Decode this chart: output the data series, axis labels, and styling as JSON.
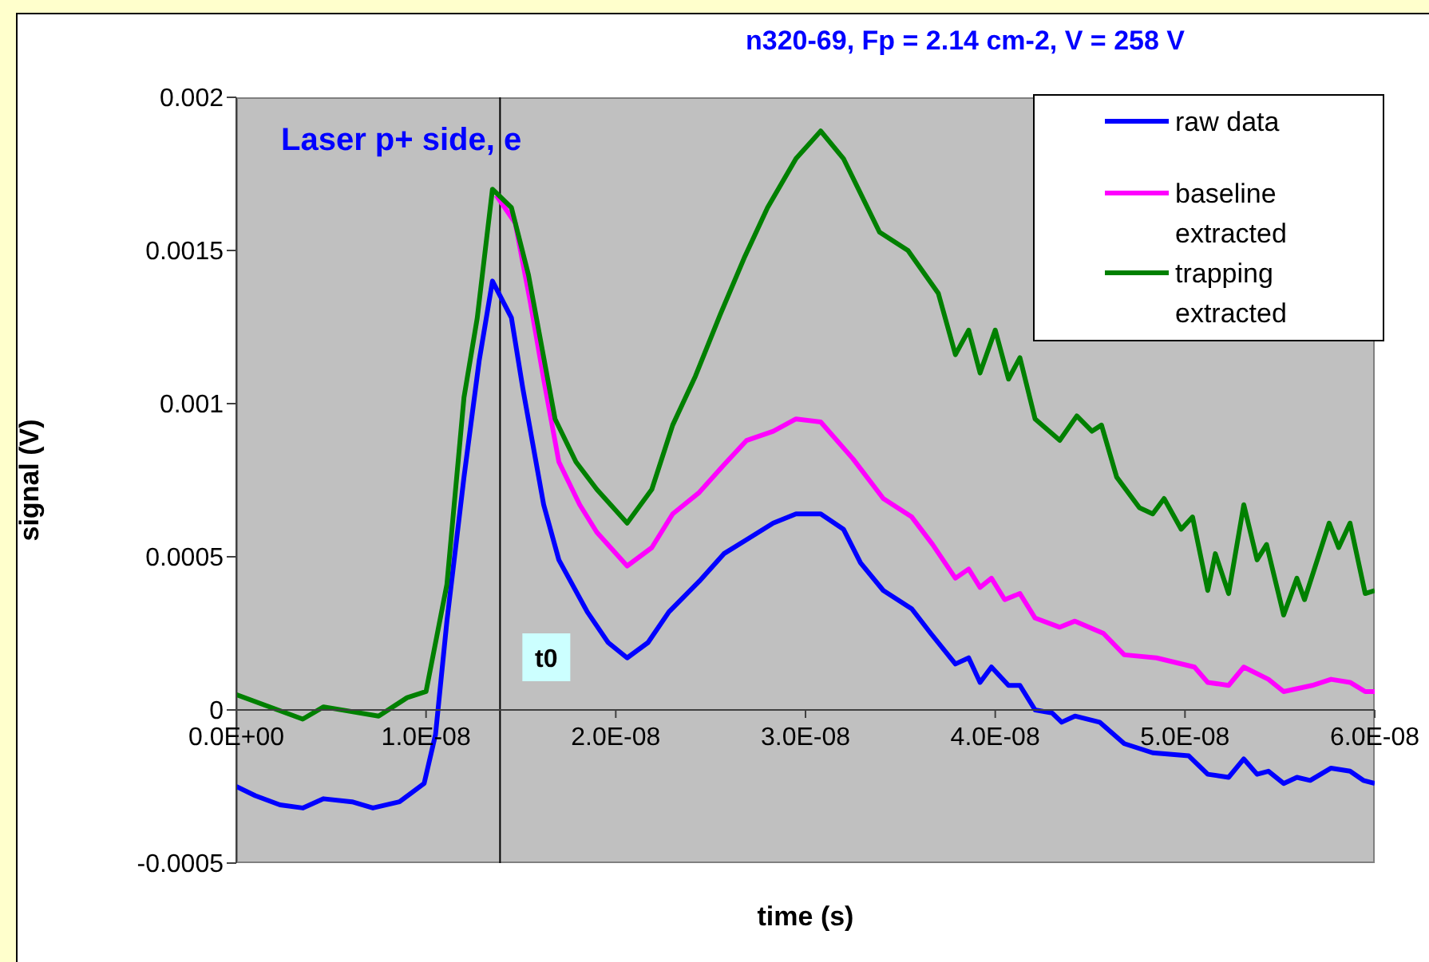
{
  "chart_data": {
    "type": "line",
    "title": "n320-69, Fp = 2.14 cm-2, V = 258 V",
    "xlabel": "time (s)",
    "ylabel": "signal (V)",
    "annotations": [
      "Laser p+ side, e"
    ],
    "xlim": [
      0,
      6e-08
    ],
    "xticks": [
      {
        "value": 0,
        "label": "0.0E+00"
      },
      {
        "value": 1e-08,
        "label": "1.0E-08"
      },
      {
        "value": 2e-08,
        "label": "2.0E-08"
      },
      {
        "value": 3e-08,
        "label": "3.0E-08"
      },
      {
        "value": 4e-08,
        "label": "4.0E-08"
      },
      {
        "value": 5e-08,
        "label": "5.0E-08"
      },
      {
        "value": 6e-08,
        "label": "6.0E-08"
      }
    ],
    "ylim": [
      -0.0005,
      0.002
    ],
    "yticks": [
      -0.0005,
      0,
      0.0005,
      0.001,
      0.0015,
      0.002
    ],
    "legend": "top right",
    "marker": "none",
    "line_style": "solid",
    "ref_lines": [
      {
        "axis": "x",
        "value": 1.39e-08,
        "label": "t0",
        "color": "#000000"
      }
    ],
    "series": [
      {
        "name": "raw data",
        "color": "#0000ff",
        "x": [
          0,
          1e-09,
          2.3e-09,
          3.5e-09,
          4.6e-09,
          6.1e-09,
          7.2e-09,
          8.6e-09,
          9.9e-09,
          1.05e-08,
          1.11e-08,
          1.2e-08,
          1.28e-08,
          1.35e-08,
          1.45e-08,
          1.51e-08,
          1.62e-08,
          1.7e-08,
          1.85e-08,
          1.96e-08,
          2.06e-08,
          2.17e-08,
          2.28e-08,
          2.44e-08,
          2.57e-08,
          2.7e-08,
          2.83e-08,
          2.95e-08,
          3.08e-08,
          3.2e-08,
          3.29e-08,
          3.41e-08,
          3.56e-08,
          3.66e-08,
          3.79e-08,
          3.86e-08,
          3.92e-08,
          3.98e-08,
          4.07e-08,
          4.13e-08,
          4.21e-08,
          4.3e-08,
          4.35e-08,
          4.42e-08,
          4.55e-08,
          4.68e-08,
          4.83e-08,
          5.02e-08,
          5.12e-08,
          5.23e-08,
          5.31e-08,
          5.38e-08,
          5.44e-08,
          5.52e-08,
          5.59e-08,
          5.66e-08,
          5.77e-08,
          5.87e-08,
          5.94e-08,
          6e-08
        ],
        "values": [
          -0.00025,
          -0.00028,
          -0.00031,
          -0.00032,
          -0.00029,
          -0.0003,
          -0.00032,
          -0.0003,
          -0.00024,
          -8e-05,
          0.00029,
          0.00076,
          0.00114,
          0.0014,
          0.00128,
          0.00105,
          0.00067,
          0.00049,
          0.00032,
          0.00022,
          0.00017,
          0.00022,
          0.00032,
          0.00042,
          0.00051,
          0.00056,
          0.00061,
          0.00064,
          0.00064,
          0.00059,
          0.00048,
          0.00039,
          0.00033,
          0.00025,
          0.00015,
          0.00017,
          9e-05,
          0.00014,
          8e-05,
          8e-05,
          0,
          -1e-05,
          -4e-05,
          -2e-05,
          -4e-05,
          -0.00011,
          -0.00014,
          -0.00015,
          -0.00021,
          -0.00022,
          -0.00016,
          -0.00021,
          -0.0002,
          -0.00024,
          -0.00022,
          -0.00023,
          -0.00019,
          -0.0002,
          -0.00023,
          -0.00024
        ]
      },
      {
        "name": "baseline extracted",
        "color": "#ff00ff",
        "x": [
          1.37e-08,
          1.47e-08,
          1.55e-08,
          1.62e-08,
          1.7e-08,
          1.81e-08,
          1.9e-08,
          2.06e-08,
          2.19e-08,
          2.3e-08,
          2.44e-08,
          2.57e-08,
          2.69e-08,
          2.83e-08,
          2.95e-08,
          3.08e-08,
          3.25e-08,
          3.41e-08,
          3.56e-08,
          3.67e-08,
          3.79e-08,
          3.86e-08,
          3.92e-08,
          3.98e-08,
          4.05e-08,
          4.13e-08,
          4.21e-08,
          4.34e-08,
          4.42e-08,
          4.57e-08,
          4.68e-08,
          4.85e-08,
          5.05e-08,
          5.12e-08,
          5.23e-08,
          5.31e-08,
          5.44e-08,
          5.52e-08,
          5.67e-08,
          5.77e-08,
          5.87e-08,
          5.95e-08,
          6e-08
        ],
        "values": [
          0.00168,
          0.00159,
          0.00133,
          0.00108,
          0.00081,
          0.00067,
          0.00058,
          0.00047,
          0.00053,
          0.00064,
          0.00071,
          0.0008,
          0.00088,
          0.00091,
          0.00095,
          0.00094,
          0.00082,
          0.00069,
          0.00063,
          0.00054,
          0.00043,
          0.00046,
          0.0004,
          0.00043,
          0.00036,
          0.00038,
          0.0003,
          0.00027,
          0.00029,
          0.00025,
          0.00018,
          0.00017,
          0.00014,
          9e-05,
          8e-05,
          0.00014,
          0.0001,
          6e-05,
          8e-05,
          0.0001,
          9e-05,
          6e-05,
          6e-05
        ]
      },
      {
        "name": "trapping extracted",
        "color": "#008000",
        "x": [
          0,
          3.5e-09,
          4.6e-09,
          7.5e-09,
          9e-09,
          1e-08,
          1.11e-08,
          1.2e-08,
          1.27e-08,
          1.35e-08,
          1.45e-08,
          1.54e-08,
          1.68e-08,
          1.79e-08,
          1.9e-08,
          2.06e-08,
          2.19e-08,
          2.3e-08,
          2.42e-08,
          2.55e-08,
          2.68e-08,
          2.8e-08,
          2.95e-08,
          3.08e-08,
          3.2e-08,
          3.39e-08,
          3.54e-08,
          3.7e-08,
          3.79e-08,
          3.86e-08,
          3.92e-08,
          4e-08,
          4.07e-08,
          4.13e-08,
          4.21e-08,
          4.34e-08,
          4.43e-08,
          4.51e-08,
          4.56e-08,
          4.64e-08,
          4.76e-08,
          4.83e-08,
          4.89e-08,
          4.98e-08,
          5.04e-08,
          5.12e-08,
          5.16e-08,
          5.23e-08,
          5.31e-08,
          5.38e-08,
          5.43e-08,
          5.52e-08,
          5.59e-08,
          5.63e-08,
          5.76e-08,
          5.81e-08,
          5.87e-08,
          5.95e-08,
          6e-08
        ],
        "values": [
          5e-05,
          -3e-05,
          1e-05,
          -2e-05,
          4e-05,
          6e-05,
          0.00041,
          0.00102,
          0.00128,
          0.0017,
          0.00164,
          0.00142,
          0.00095,
          0.00081,
          0.00072,
          0.00061,
          0.00072,
          0.00093,
          0.00109,
          0.00129,
          0.00148,
          0.00164,
          0.0018,
          0.00189,
          0.0018,
          0.00156,
          0.0015,
          0.00136,
          0.00116,
          0.00124,
          0.0011,
          0.00124,
          0.00108,
          0.00115,
          0.00095,
          0.00088,
          0.00096,
          0.00091,
          0.00093,
          0.00076,
          0.00066,
          0.00064,
          0.00069,
          0.00059,
          0.00063,
          0.00039,
          0.00051,
          0.00038,
          0.00067,
          0.00049,
          0.00054,
          0.00031,
          0.00043,
          0.00036,
          0.00061,
          0.00053,
          0.00061,
          0.00038,
          0.00039
        ]
      }
    ]
  }
}
